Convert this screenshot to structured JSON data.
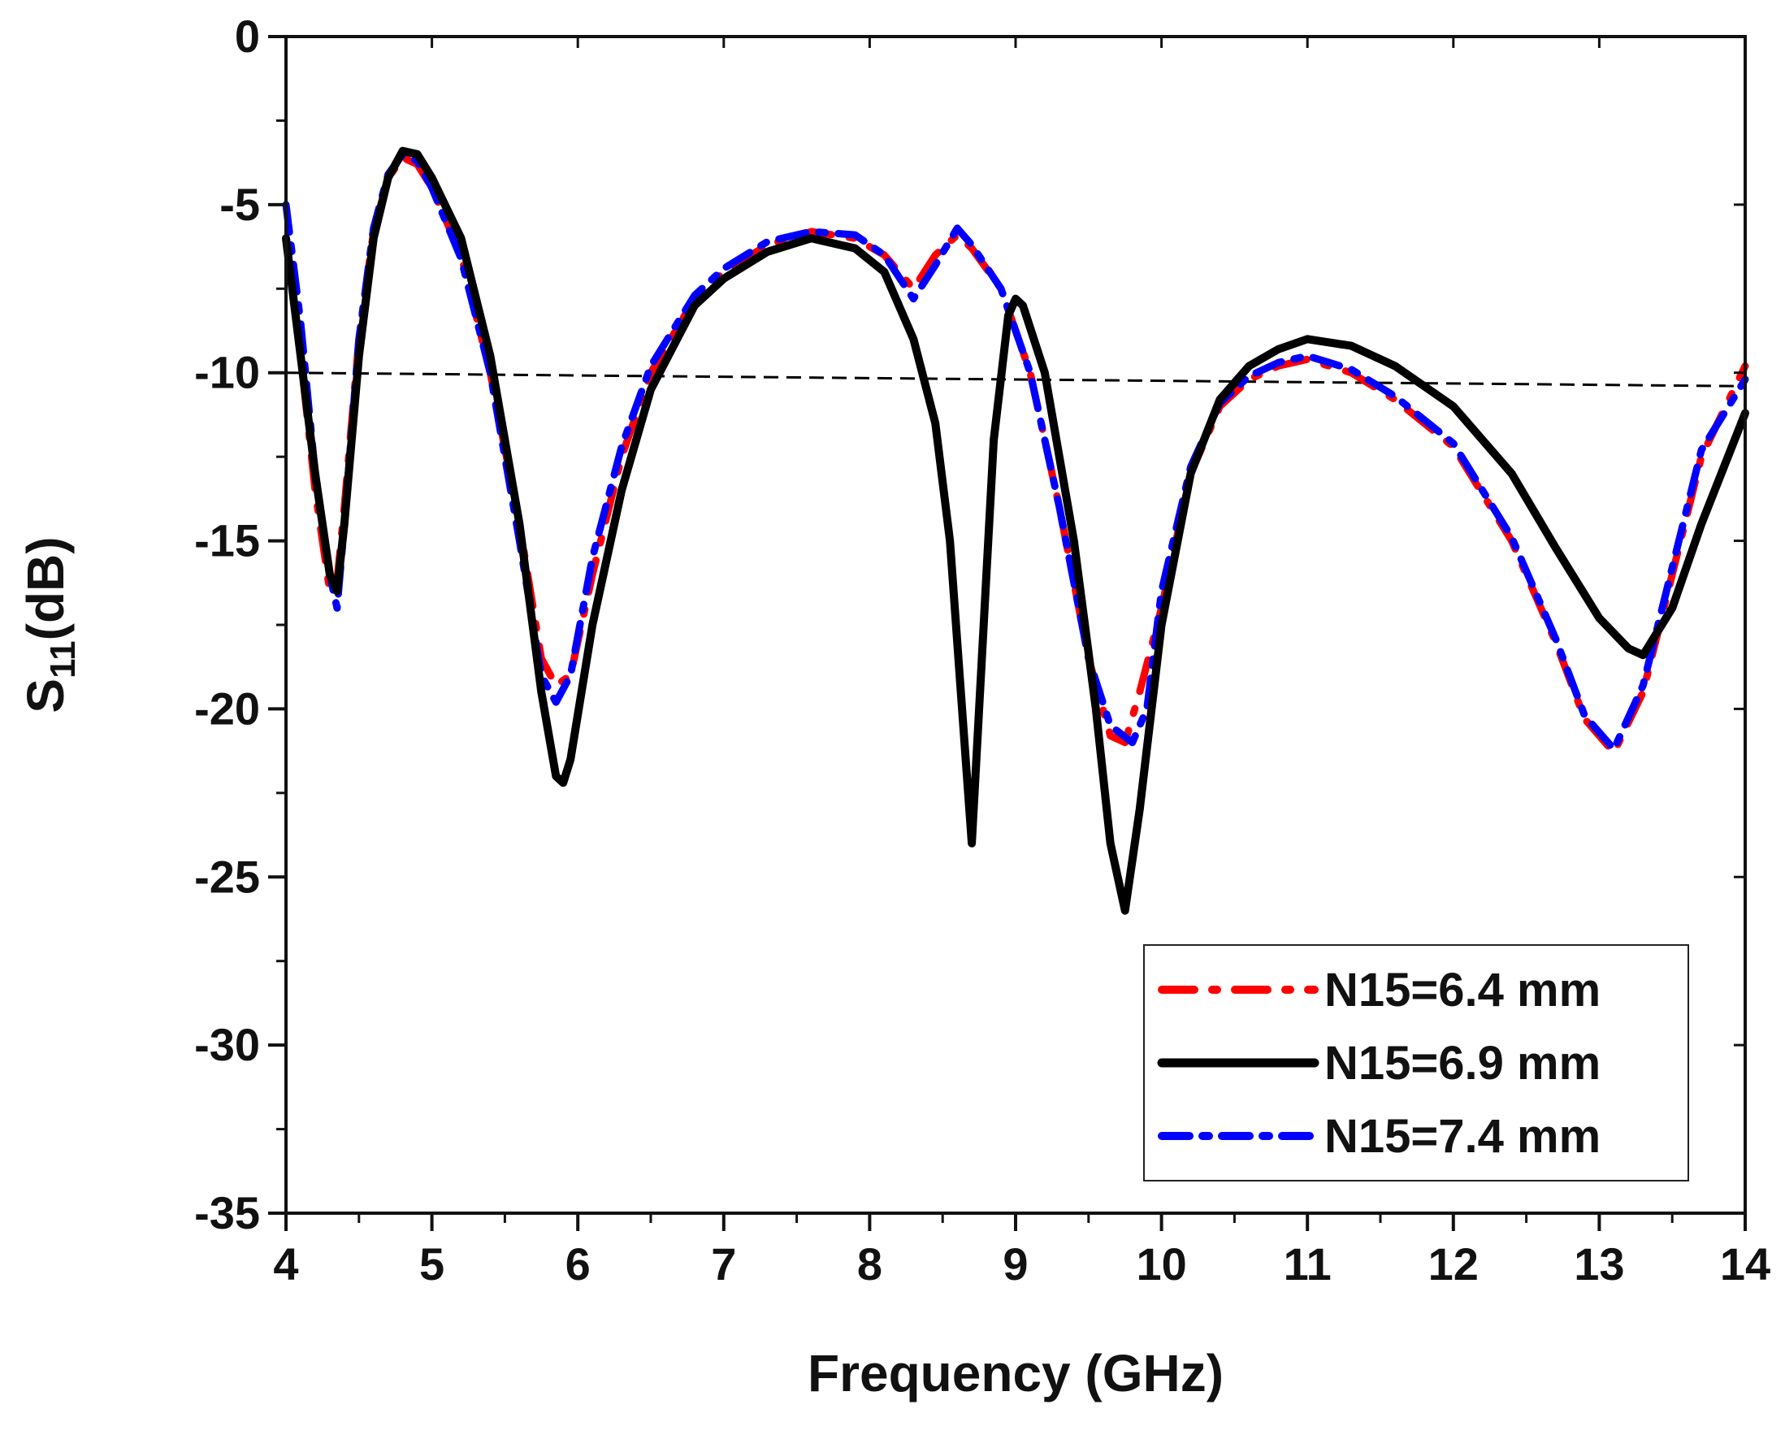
{
  "chart_data": {
    "type": "line",
    "xlabel": "Frequency (GHz)",
    "ylabel": {
      "main": "S",
      "sub": "11",
      "suffix": "(dB)"
    },
    "xlim": [
      4,
      14
    ],
    "ylim": [
      -35,
      0
    ],
    "xticks": [
      4,
      5,
      6,
      7,
      8,
      9,
      10,
      11,
      12,
      13,
      14
    ],
    "yticks": [
      0,
      -5,
      -10,
      -15,
      -20,
      -25,
      -30,
      -35
    ],
    "legend_position": "bottom-right",
    "grid": false,
    "reference_line": {
      "style": "dashed",
      "color": "#000000",
      "x": [
        4,
        14
      ],
      "y": [
        -10.0,
        -10.4
      ]
    },
    "series": [
      {
        "name": "N15=6.4 mm",
        "color": "#ff0000",
        "style": "dash-dot",
        "x": [
          4.0,
          4.1,
          4.2,
          4.3,
          4.35,
          4.4,
          4.5,
          4.6,
          4.7,
          4.8,
          4.9,
          5.0,
          5.2,
          5.4,
          5.6,
          5.75,
          5.85,
          5.95,
          6.1,
          6.3,
          6.5,
          6.8,
          7.0,
          7.3,
          7.6,
          7.9,
          8.1,
          8.3,
          8.45,
          8.6,
          8.7,
          8.9,
          9.1,
          9.3,
          9.5,
          9.65,
          9.75,
          9.85,
          10.0,
          10.2,
          10.4,
          10.6,
          10.8,
          11.0,
          11.3,
          11.6,
          12.0,
          12.4,
          12.7,
          12.9,
          13.1,
          13.3,
          13.5,
          13.7,
          14.0
        ],
        "y": [
          -6.0,
          -9.5,
          -13.5,
          -16.5,
          -16.2,
          -14.0,
          -9.0,
          -5.8,
          -4.2,
          -3.6,
          -3.8,
          -4.5,
          -6.5,
          -10.0,
          -14.5,
          -18.5,
          -19.3,
          -19.0,
          -16.0,
          -12.5,
          -10.0,
          -7.8,
          -7.0,
          -6.2,
          -5.8,
          -6.0,
          -6.5,
          -7.5,
          -6.5,
          -5.9,
          -6.3,
          -7.5,
          -10.0,
          -14.0,
          -18.5,
          -20.8,
          -21.0,
          -19.5,
          -17.0,
          -13.0,
          -11.0,
          -10.2,
          -9.8,
          -9.6,
          -10.0,
          -10.8,
          -12.2,
          -15.0,
          -18.0,
          -20.3,
          -21.3,
          -19.5,
          -16.0,
          -12.5,
          -9.8
        ]
      },
      {
        "name": "N15=6.9 mm",
        "color": "#000000",
        "style": "solid",
        "x": [
          4.0,
          4.1,
          4.2,
          4.3,
          4.35,
          4.4,
          4.5,
          4.6,
          4.7,
          4.8,
          4.9,
          5.0,
          5.2,
          5.4,
          5.6,
          5.75,
          5.85,
          5.9,
          5.95,
          6.1,
          6.3,
          6.5,
          6.8,
          7.0,
          7.3,
          7.6,
          7.9,
          8.1,
          8.3,
          8.45,
          8.55,
          8.65,
          8.7,
          8.75,
          8.85,
          8.95,
          9.0,
          9.05,
          9.2,
          9.4,
          9.55,
          9.65,
          9.75,
          9.85,
          10.0,
          10.2,
          10.4,
          10.6,
          10.8,
          11.0,
          11.3,
          11.6,
          12.0,
          12.4,
          12.7,
          13.0,
          13.2,
          13.3,
          13.5,
          13.7,
          14.0
        ],
        "y": [
          -6.0,
          -9.5,
          -13.0,
          -16.0,
          -16.5,
          -14.5,
          -9.5,
          -6.0,
          -4.2,
          -3.4,
          -3.5,
          -4.2,
          -6.0,
          -9.5,
          -14.5,
          -19.5,
          -22.0,
          -22.2,
          -21.5,
          -17.5,
          -13.5,
          -10.5,
          -8.0,
          -7.2,
          -6.4,
          -6.0,
          -6.3,
          -7.0,
          -9.0,
          -11.5,
          -15.0,
          -21.0,
          -24.0,
          -20.0,
          -12.0,
          -8.3,
          -7.8,
          -8.0,
          -10.0,
          -15.0,
          -20.0,
          -24.0,
          -26.0,
          -23.0,
          -17.5,
          -13.0,
          -10.8,
          -9.8,
          -9.3,
          -9.0,
          -9.2,
          -9.8,
          -11.0,
          -13.0,
          -15.2,
          -17.3,
          -18.2,
          -18.4,
          -17.0,
          -14.5,
          -11.2
        ]
      },
      {
        "name": "N15=7.4 mm",
        "color": "#0000ff",
        "style": "dash-dot",
        "x": [
          4.0,
          4.1,
          4.2,
          4.3,
          4.35,
          4.4,
          4.5,
          4.6,
          4.7,
          4.8,
          4.9,
          5.0,
          5.2,
          5.4,
          5.6,
          5.75,
          5.85,
          5.95,
          6.1,
          6.3,
          6.5,
          6.8,
          7.0,
          7.3,
          7.6,
          7.9,
          8.1,
          8.3,
          8.45,
          8.6,
          8.7,
          8.9,
          9.1,
          9.3,
          9.5,
          9.65,
          9.8,
          9.9,
          10.0,
          10.2,
          10.4,
          10.6,
          10.8,
          11.0,
          11.3,
          11.6,
          12.0,
          12.4,
          12.7,
          12.9,
          13.1,
          13.3,
          13.5,
          13.7,
          14.0
        ],
        "y": [
          -5.0,
          -8.5,
          -13.0,
          -16.0,
          -17.0,
          -14.5,
          -9.0,
          -5.7,
          -4.1,
          -3.5,
          -3.7,
          -4.5,
          -6.6,
          -10.0,
          -15.0,
          -19.0,
          -19.8,
          -19.0,
          -15.5,
          -12.2,
          -9.8,
          -7.7,
          -6.9,
          -6.1,
          -5.8,
          -5.9,
          -6.5,
          -7.8,
          -6.8,
          -5.7,
          -6.2,
          -7.5,
          -10.0,
          -14.0,
          -18.5,
          -20.5,
          -21.0,
          -20.0,
          -16.5,
          -12.8,
          -10.9,
          -10.1,
          -9.7,
          -9.5,
          -9.9,
          -10.7,
          -12.1,
          -14.9,
          -17.9,
          -20.2,
          -21.2,
          -19.3,
          -15.8,
          -12.3,
          -10.2
        ]
      }
    ]
  }
}
